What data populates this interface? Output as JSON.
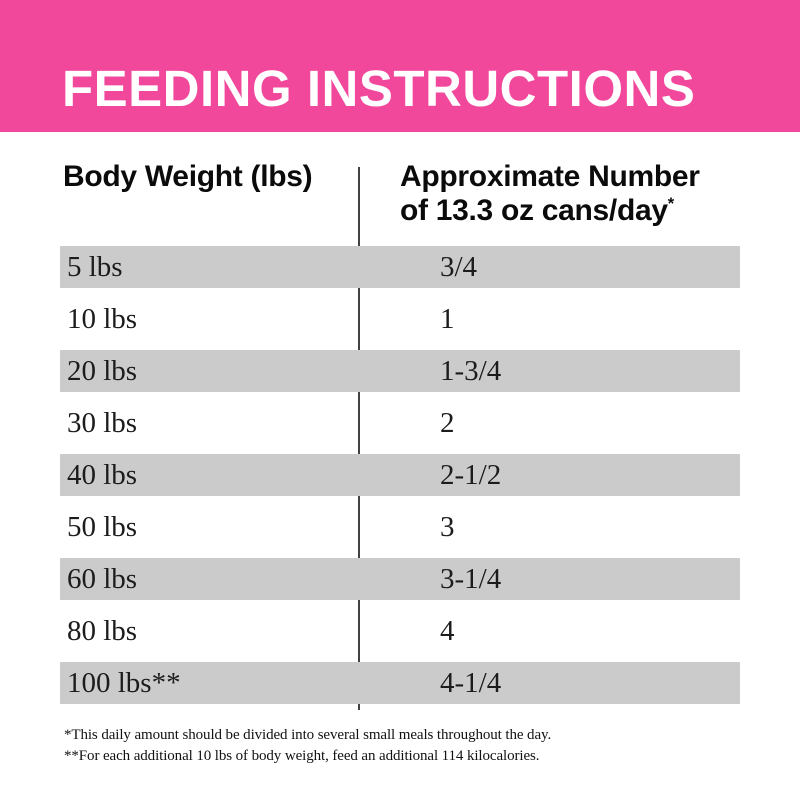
{
  "banner": {
    "title": "FEEDING INSTRUCTIONS",
    "background_color": "#F2489C",
    "text_color": "#FFFFFF"
  },
  "table": {
    "col1_header": "Body Weight (lbs)",
    "col2_header_line1": "Approximate Number",
    "col2_header_line2": "of 13.3 oz cans/day",
    "col2_header_footnote_mark": "*",
    "stripe_color": "#CBCBCB",
    "divider_color": "#424242",
    "rows": [
      {
        "weight": "5 lbs",
        "cans": "3/4"
      },
      {
        "weight": "10 lbs",
        "cans": "1"
      },
      {
        "weight": "20 lbs",
        "cans": "1-3/4"
      },
      {
        "weight": "30 lbs",
        "cans": "2"
      },
      {
        "weight": "40 lbs",
        "cans": "2-1/2"
      },
      {
        "weight": "50 lbs",
        "cans": "3"
      },
      {
        "weight": "60 lbs",
        "cans": "3-1/4"
      },
      {
        "weight": "80 lbs",
        "cans": "4"
      },
      {
        "weight": "100 lbs**",
        "cans": "4-1/4"
      }
    ]
  },
  "footnotes": [
    "*This daily amount should be divided into several small meals throughout the day.",
    "**For each additional 10 lbs of body weight, feed an additional 114 kilocalories."
  ]
}
